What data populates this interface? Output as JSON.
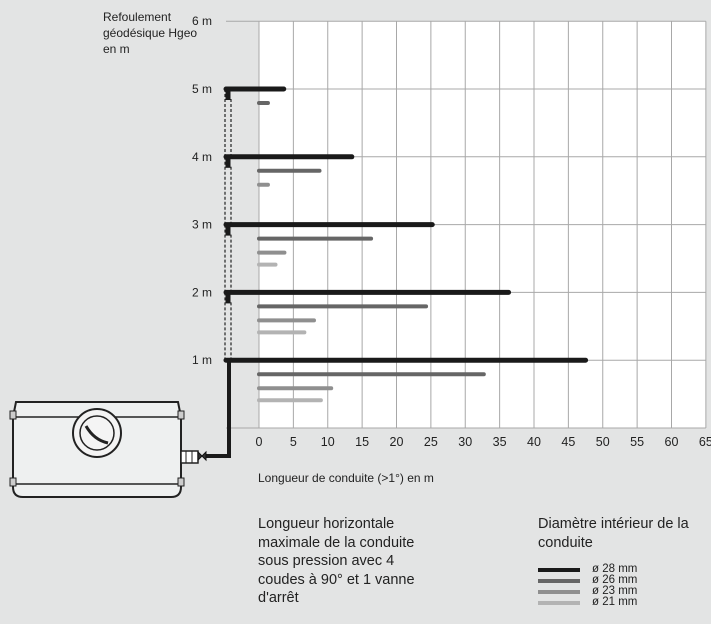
{
  "chart_data": {
    "type": "bar",
    "orientation": "horizontal",
    "ylabel": "Refoulement géodésique Hgeo en m",
    "xlabel": "Longueur de conduite (>1°) en m",
    "y_ticks": [
      "1 m",
      "2 m",
      "3 m",
      "4 m",
      "5 m",
      "6 m"
    ],
    "x_ticks": [
      "0",
      "5",
      "10",
      "15",
      "20",
      "25",
      "30",
      "35",
      "40",
      "45",
      "50",
      "55",
      "60",
      "65"
    ],
    "xlim": [
      0,
      65
    ],
    "ylim": [
      0,
      6
    ],
    "grid": true,
    "legend_title": "Diamètre intérieur de la conduite",
    "series": [
      {
        "name": "ø 28 mm",
        "color": "#1a1a1a"
      },
      {
        "name": "ø 26 mm",
        "color": "#666666"
      },
      {
        "name": "ø 23 mm",
        "color": "#8f8f8f"
      },
      {
        "name": "ø 21 mm",
        "color": "#b3b3b3"
      }
    ],
    "groups": [
      {
        "hgeo": 1,
        "values": [
          47.5,
          32.7,
          10.5,
          9.0
        ]
      },
      {
        "hgeo": 2,
        "values": [
          36.3,
          24.3,
          8.0,
          6.6
        ]
      },
      {
        "hgeo": 3,
        "values": [
          25.2,
          16.3,
          3.7,
          2.4
        ]
      },
      {
        "hgeo": 4,
        "values": [
          13.5,
          8.8,
          1.3
        ]
      },
      {
        "hgeo": 5,
        "values": [
          3.6,
          1.3
        ]
      }
    ]
  },
  "note": "Longueur horizontale maximale de la conduite sous pression avec 4 coudes à 90° et 1 vanne d'arrêt",
  "icons": {
    "pump": "lifting-station-pump-icon",
    "valve": "stop-valve-icon"
  }
}
